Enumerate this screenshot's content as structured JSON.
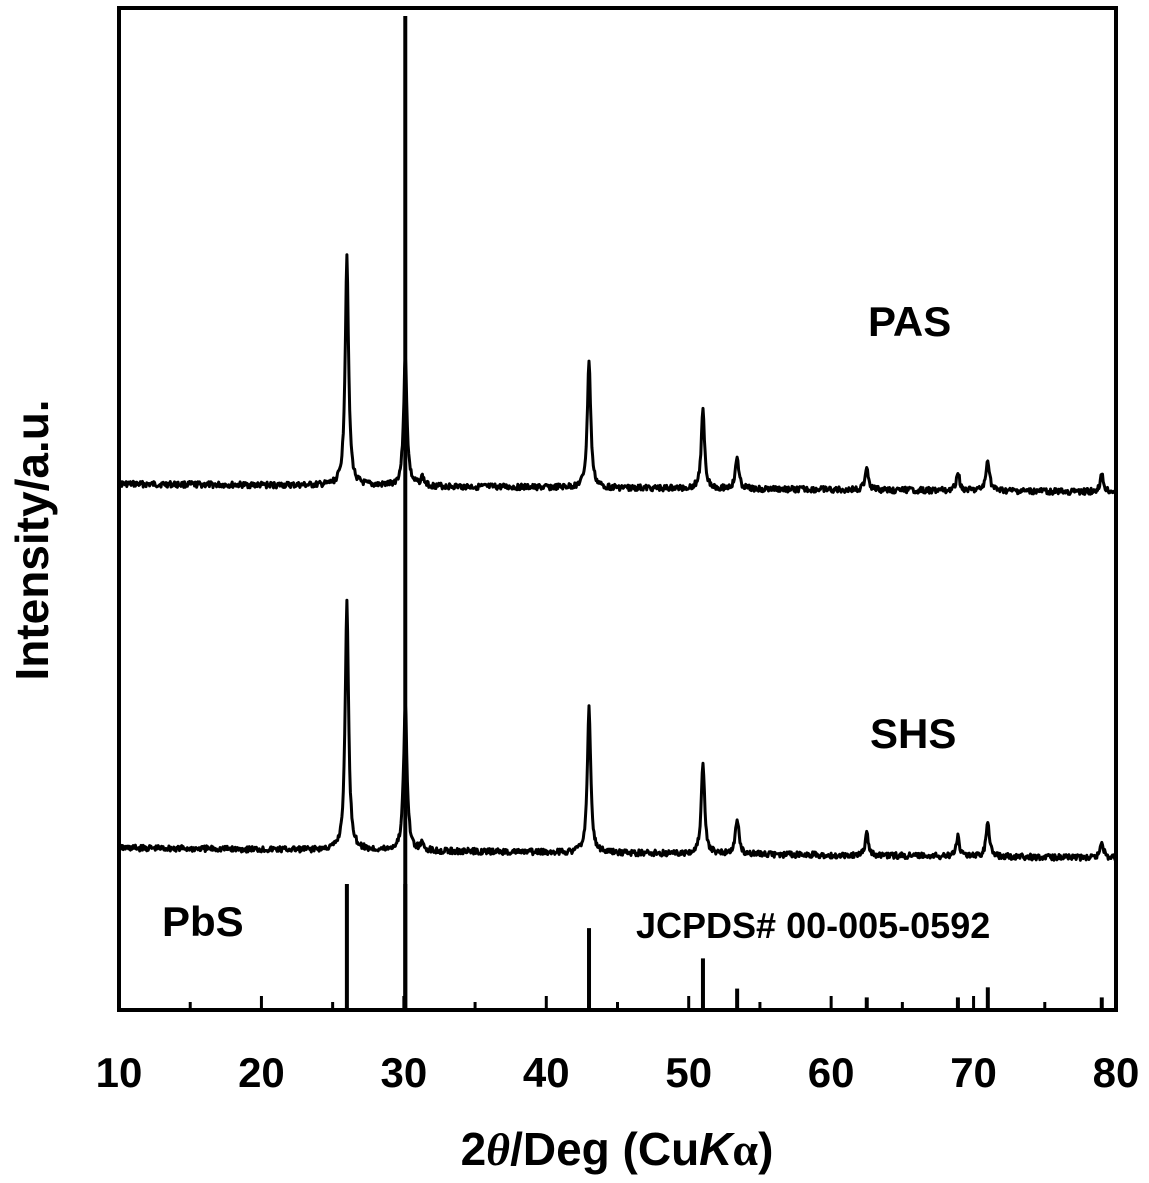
{
  "chart_data": {
    "type": "line",
    "xlabel": {
      "prefix": "2",
      "theta": "θ",
      "middle": "/Deg (Cu",
      "k": "K",
      "alpha": "α",
      "suffix": ")"
    },
    "ylabel": "Intensity/a.u.",
    "xlim": [
      10,
      80
    ],
    "x_ticks": [
      10,
      20,
      30,
      40,
      50,
      60,
      70,
      80
    ],
    "grid": false,
    "y_ticks_shown": false,
    "annotations": {
      "pas": "PAS",
      "shs": "SHS",
      "pbs": "PbS",
      "jcpds": "JCPDS#  00-005-0592"
    },
    "series": [
      {
        "name": "PAS",
        "baseline": 0,
        "peaks": [
          {
            "x": 26.0,
            "y": 550
          },
          {
            "x": 30.1,
            "y": 310
          },
          {
            "x": 31.3,
            "y": 20
          },
          {
            "x": 43.0,
            "y": 305
          },
          {
            "x": 51.0,
            "y": 185
          },
          {
            "x": 53.4,
            "y": 75
          },
          {
            "x": 62.5,
            "y": 55
          },
          {
            "x": 68.9,
            "y": 45
          },
          {
            "x": 71.0,
            "y": 75
          },
          {
            "x": 79.0,
            "y": 40
          }
        ]
      },
      {
        "name": "SHS",
        "baseline": 0,
        "peaks": [
          {
            "x": 26.0,
            "y": 580
          },
          {
            "x": 30.1,
            "y": 350
          },
          {
            "x": 31.3,
            "y": 15
          },
          {
            "x": 43.0,
            "y": 340
          },
          {
            "x": 51.0,
            "y": 210
          },
          {
            "x": 53.4,
            "y": 85
          },
          {
            "x": 62.5,
            "y": 50
          },
          {
            "x": 68.9,
            "y": 45
          },
          {
            "x": 71.0,
            "y": 80
          },
          {
            "x": 79.0,
            "y": 40
          }
        ]
      }
    ],
    "reference": {
      "name": "PbS",
      "lines": [
        {
          "x": 26.0,
          "y": 100
        },
        {
          "x": 30.1,
          "y": 100
        },
        {
          "x": 43.0,
          "y": 65
        },
        {
          "x": 51.0,
          "y": 41
        },
        {
          "x": 53.4,
          "y": 17
        },
        {
          "x": 62.5,
          "y": 10
        },
        {
          "x": 68.9,
          "y": 10
        },
        {
          "x": 71.0,
          "y": 18
        },
        {
          "x": 79.0,
          "y": 10
        }
      ]
    },
    "colors": {
      "line": "#000000",
      "background": "#ffffff"
    }
  }
}
